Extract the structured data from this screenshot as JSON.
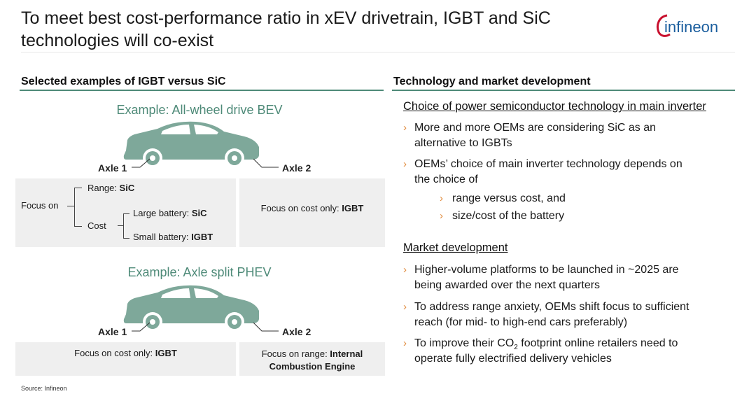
{
  "slide": {
    "title": "To meet best cost-performance ratio in xEV drivetrain, IGBT and SiC technologies will co-exist",
    "logo_text": "infineon",
    "source": "Source: Infineon"
  },
  "left": {
    "heading": "Selected examples of IGBT versus SiC",
    "example1": {
      "title": "Example: All-wheel drive BEV",
      "axle1": "Axle 1",
      "axle2": "Axle 2",
      "focus_on": "Focus on",
      "range_label": "Range: ",
      "range_value": "SiC",
      "cost_label": "Cost",
      "large_label": "Large battery: ",
      "large_value": "SiC",
      "small_label": "Small battery: ",
      "small_value": "IGBT",
      "right_label": "Focus on cost only: ",
      "right_value": "IGBT"
    },
    "example2": {
      "title": "Example: Axle split PHEV",
      "axle1": "Axle 1",
      "axle2": "Axle 2",
      "left_label": "Focus on cost only: ",
      "left_value": "IGBT",
      "right_label": "Focus on range: ",
      "right_value_1": "Internal",
      "right_value_2": "Combustion Engine"
    }
  },
  "right": {
    "heading": "Technology and market development",
    "sub1": "Choice of power semiconductor technology in main inverter",
    "b1_line1": "More and more OEMs are considering SiC as an",
    "b1_line2": "alternative to IGBTs",
    "b2_line1": "OEMs’ choice of main inverter technology depends on",
    "b2_line2": "the choice of",
    "b2_sub1": "range versus cost, and",
    "b2_sub2": "size/cost of the battery",
    "sub2": "Market development",
    "b3_line1": "Higher-volume platforms to be launched in ~2025 are",
    "b3_line2": "being awarded over the next quarters",
    "b4_line1": "To address range anxiety, OEMs shift focus to sufficient",
    "b4_line2": "reach (for mid- to high-end cars preferably)",
    "b5_pre": "To improve their CO",
    "b5_sub": "2",
    "b5_post": " footprint online retailers need to",
    "b5_line2": "operate fully electrified delivery vehicles",
    "arrow": "›"
  },
  "colors": {
    "accent": "#4e8a78",
    "car": "#7ea89a",
    "bullet": "#e08a3c",
    "logo_red": "#c8102e",
    "logo_blue": "#1b5e9e"
  }
}
